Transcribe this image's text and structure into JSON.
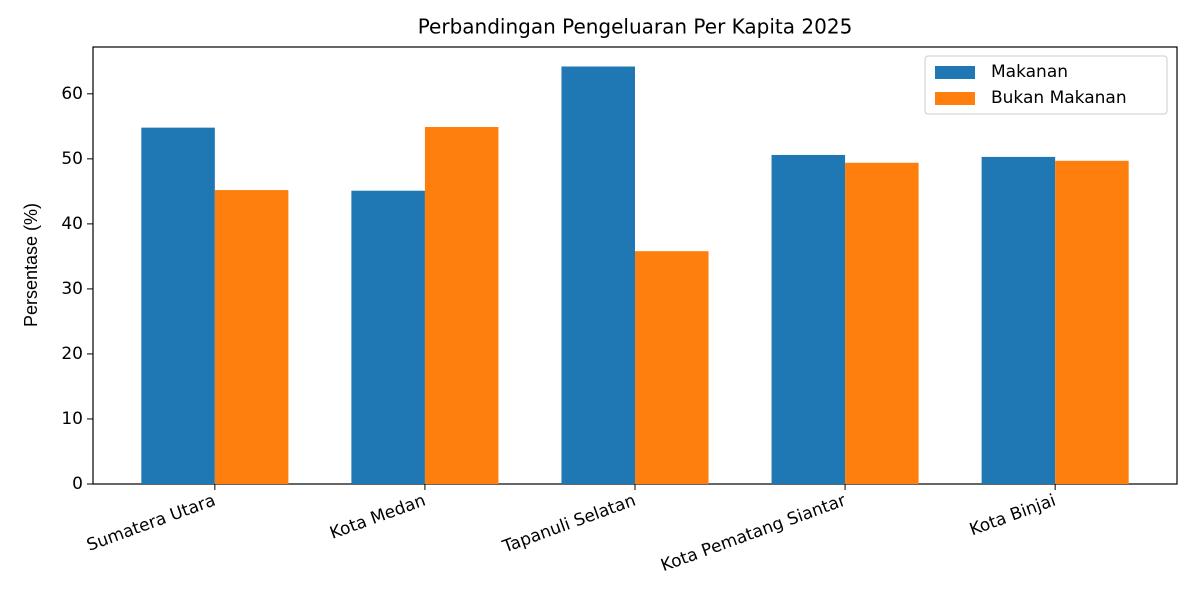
{
  "chart_data": {
    "type": "bar",
    "title": "Perbandingan Pengeluaran Per Kapita 2025",
    "y_label": "Persentase (%)",
    "categories": [
      "Sumatera Utara",
      "Kota Medan",
      "Tapanuli Selatan",
      "Kota Pematang Siantar",
      "Kota Binjai"
    ],
    "series": [
      {
        "name": "Makanan",
        "color": "#1f77b4",
        "values": [
          54.8,
          45.1,
          64.2,
          50.6,
          50.3
        ]
      },
      {
        "name": "Bukan Makanan",
        "color": "#ff7f0e",
        "values": [
          45.2,
          54.9,
          35.8,
          49.4,
          49.7
        ]
      }
    ],
    "ylim": [
      0,
      67.2
    ],
    "yticks": [
      0,
      10,
      20,
      30,
      40,
      50,
      60
    ],
    "grid": false,
    "legend": "upper right"
  }
}
